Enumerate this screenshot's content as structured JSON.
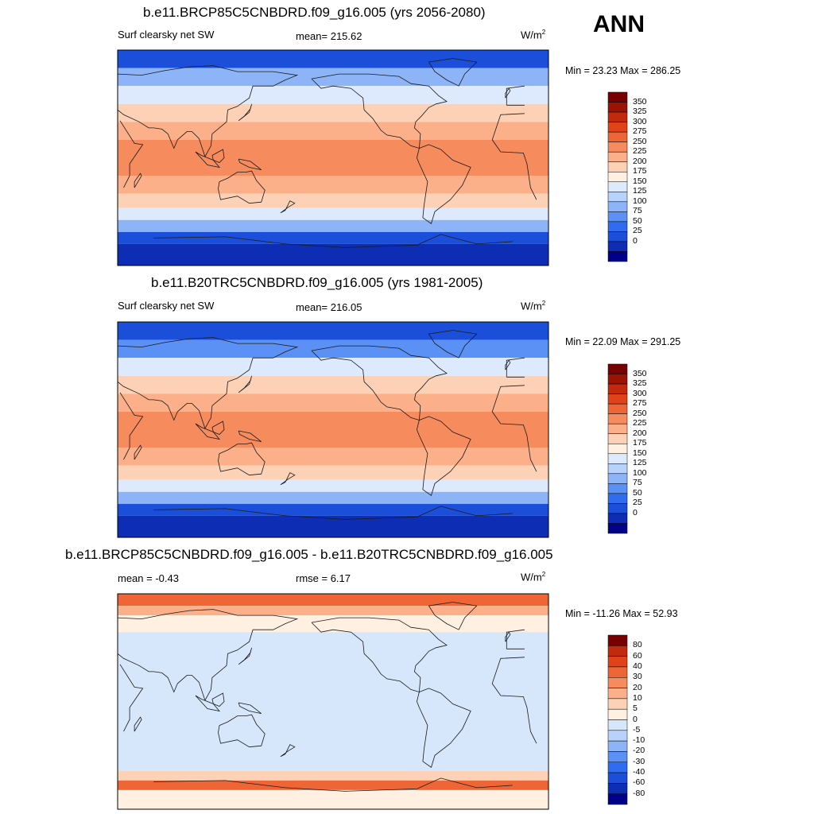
{
  "season": "ANN",
  "colors": {
    "abs_scale": [
      "#00008b",
      "#0d2db4",
      "#1c4fd9",
      "#2f6cf0",
      "#5b90f5",
      "#8cb4f7",
      "#b9d2fa",
      "#dde9fc",
      "#fff0e2",
      "#fdd1b5",
      "#fbb08a",
      "#f68b5e",
      "#ef6636",
      "#e0431a",
      "#c32a0d",
      "#9a1305",
      "#780000"
    ],
    "diff_scale": [
      "#00008b",
      "#0d2db4",
      "#1c4fd9",
      "#2f6cf0",
      "#5b90f5",
      "#8cb4f7",
      "#b9d2fa",
      "#d6e6fb",
      "#fff0e2",
      "#fdd1b5",
      "#fbb08a",
      "#f68b5e",
      "#ef6636",
      "#e0431a",
      "#c32a0d",
      "#780000"
    ]
  },
  "panels": [
    {
      "title": "b.e11.BRCP85C5CNBDRD.f09_g16.005 (yrs 2056-2080)",
      "left_label": "Surf clearsky net SW",
      "center_label": "mean= 215.62",
      "units": "W/m",
      "units_exp": "2",
      "minmax": "Min =  23.23 Max = 286.25",
      "colorbar_ticks": [
        "350",
        "325",
        "300",
        "275",
        "250",
        "225",
        "200",
        "175",
        "150",
        "125",
        "100",
        "75",
        "50",
        "25",
        "0"
      ],
      "bands": [
        {
          "lat": [
            75,
            90
          ],
          "level": 2
        },
        {
          "lat": [
            60,
            75
          ],
          "level": 5
        },
        {
          "lat": [
            45,
            60
          ],
          "level": 7
        },
        {
          "lat": [
            30,
            45
          ],
          "level": 9
        },
        {
          "lat": [
            15,
            30
          ],
          "level": 10
        },
        {
          "lat": [
            -15,
            15
          ],
          "level": 11
        },
        {
          "lat": [
            -30,
            -15
          ],
          "level": 10
        },
        {
          "lat": [
            -42,
            -30
          ],
          "level": 9
        },
        {
          "lat": [
            -52,
            -42
          ],
          "level": 7
        },
        {
          "lat": [
            -62,
            -52
          ],
          "level": 5
        },
        {
          "lat": [
            -72,
            -62
          ],
          "level": 2
        },
        {
          "lat": [
            -90,
            -72
          ],
          "level": 1
        }
      ]
    },
    {
      "title": "b.e11.B20TRC5CNBDRD.f09_g16.005 (yrs 1981-2005)",
      "left_label": "Surf clearsky net SW",
      "center_label": "mean= 216.05",
      "units": "W/m",
      "units_exp": "2",
      "minmax": "Min =  22.09 Max = 291.25",
      "colorbar_ticks": [
        "350",
        "325",
        "300",
        "275",
        "250",
        "225",
        "200",
        "175",
        "150",
        "125",
        "100",
        "75",
        "50",
        "25",
        "0"
      ],
      "bands": [
        {
          "lat": [
            75,
            90
          ],
          "level": 2
        },
        {
          "lat": [
            60,
            75
          ],
          "level": 4
        },
        {
          "lat": [
            45,
            60
          ],
          "level": 7
        },
        {
          "lat": [
            30,
            45
          ],
          "level": 9
        },
        {
          "lat": [
            15,
            30
          ],
          "level": 10
        },
        {
          "lat": [
            -15,
            15
          ],
          "level": 11
        },
        {
          "lat": [
            -30,
            -15
          ],
          "level": 10
        },
        {
          "lat": [
            -42,
            -30
          ],
          "level": 9
        },
        {
          "lat": [
            -52,
            -42
          ],
          "level": 7
        },
        {
          "lat": [
            -62,
            -52
          ],
          "level": 5
        },
        {
          "lat": [
            -72,
            -62
          ],
          "level": 2
        },
        {
          "lat": [
            -90,
            -72
          ],
          "level": 1
        }
      ]
    },
    {
      "title": "b.e11.BRCP85C5CNBDRD.f09_g16.005 - b.e11.B20TRC5CNBDRD.f09_g16.005",
      "left_label": "mean =  -0.43",
      "center_label": "rmse =   6.17",
      "units": "W/m",
      "units_exp": "2",
      "minmax": "Min = -11.26 Max =  52.93",
      "colorbar_ticks": [
        "80",
        "60",
        "40",
        "30",
        "20",
        "10",
        "5",
        "0",
        "-5",
        "-10",
        "-20",
        "-30",
        "-40",
        "-60",
        "-80"
      ],
      "bands": [
        {
          "lat": [
            80,
            90
          ],
          "level": 12
        },
        {
          "lat": [
            72,
            80
          ],
          "level": 10
        },
        {
          "lat": [
            58,
            72
          ],
          "level": 8
        },
        {
          "lat": [
            -58,
            58
          ],
          "level": 7
        },
        {
          "lat": [
            -66,
            -58
          ],
          "level": 9
        },
        {
          "lat": [
            -74,
            -66
          ],
          "level": 12
        },
        {
          "lat": [
            -90,
            -74
          ],
          "level": 8
        }
      ]
    }
  ]
}
